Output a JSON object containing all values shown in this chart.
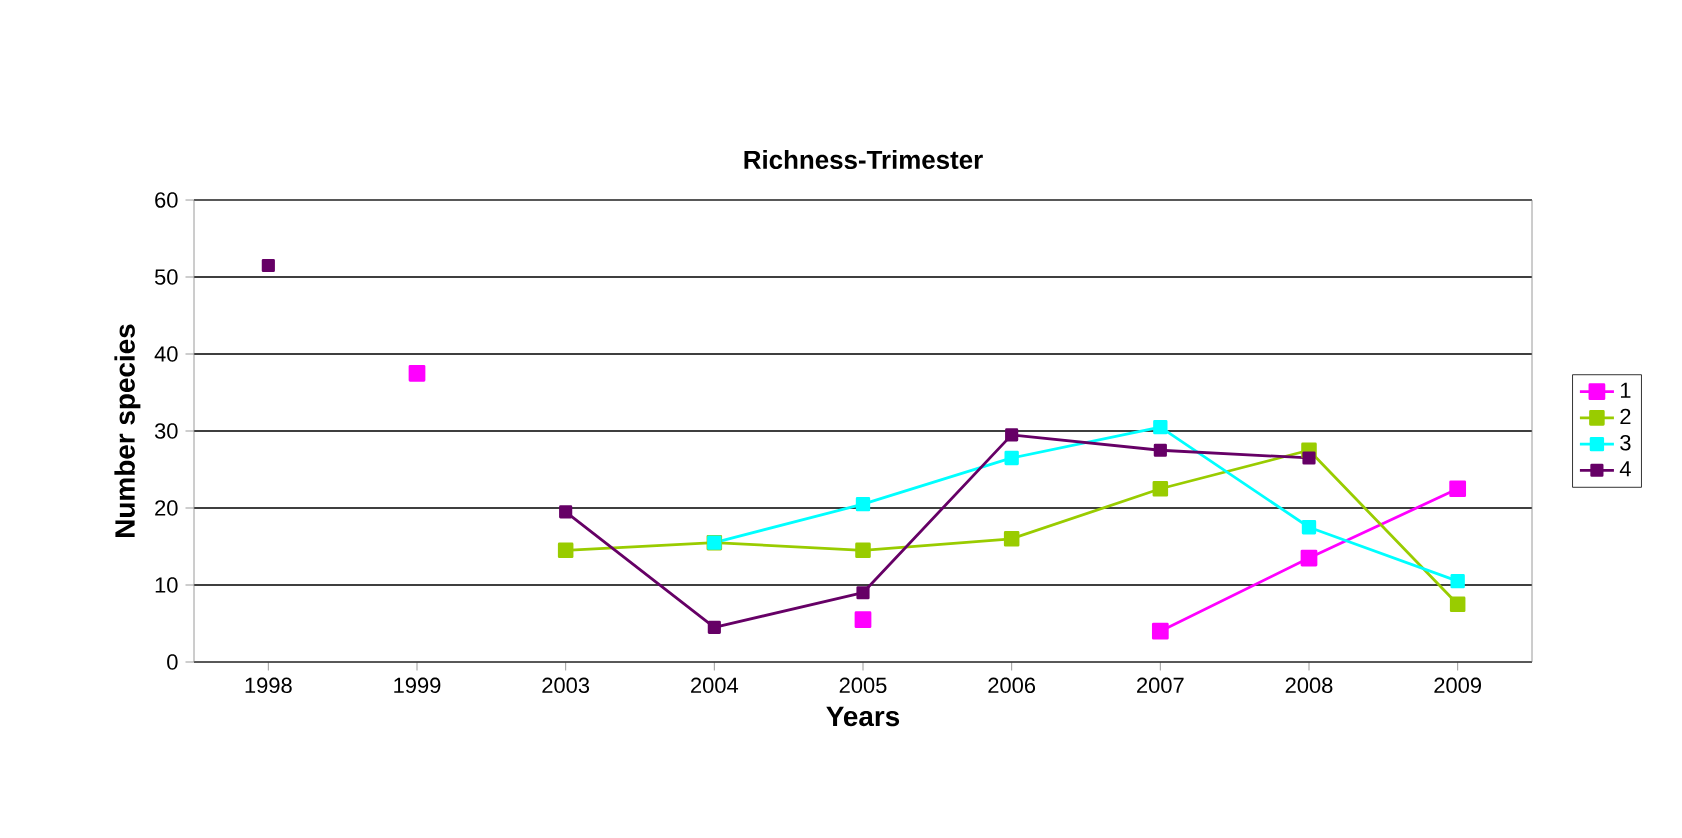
{
  "chart_data": {
    "type": "line",
    "title": "Richness-Trimester",
    "xlabel": "Years",
    "ylabel": "Number species",
    "categories": [
      "1998",
      "1999",
      "2003",
      "2004",
      "2005",
      "2006",
      "2007",
      "2008",
      "2009"
    ],
    "series": [
      {
        "name": "1",
        "color": "#ff00ff",
        "values": [
          null,
          37.5,
          null,
          null,
          5.5,
          null,
          4,
          13.5,
          22.5
        ]
      },
      {
        "name": "2",
        "color": "#99cc00",
        "values": [
          null,
          null,
          14.5,
          15.5,
          14.5,
          16,
          22.5,
          27.5,
          7.5
        ]
      },
      {
        "name": "3",
        "color": "#00ffff",
        "values": [
          null,
          null,
          null,
          15.5,
          20.5,
          26.5,
          30.5,
          17.5,
          10.5
        ]
      },
      {
        "name": "4",
        "color": "#660066",
        "values": [
          51.5,
          null,
          19.5,
          4.5,
          9,
          29.5,
          27.5,
          26.5,
          null
        ]
      }
    ],
    "ylim": [
      0,
      60
    ],
    "yticks": [
      0,
      10,
      20,
      30,
      40,
      50,
      60
    ],
    "grid": "y",
    "legend": "right",
    "marker": "square",
    "line_style": "solid"
  }
}
